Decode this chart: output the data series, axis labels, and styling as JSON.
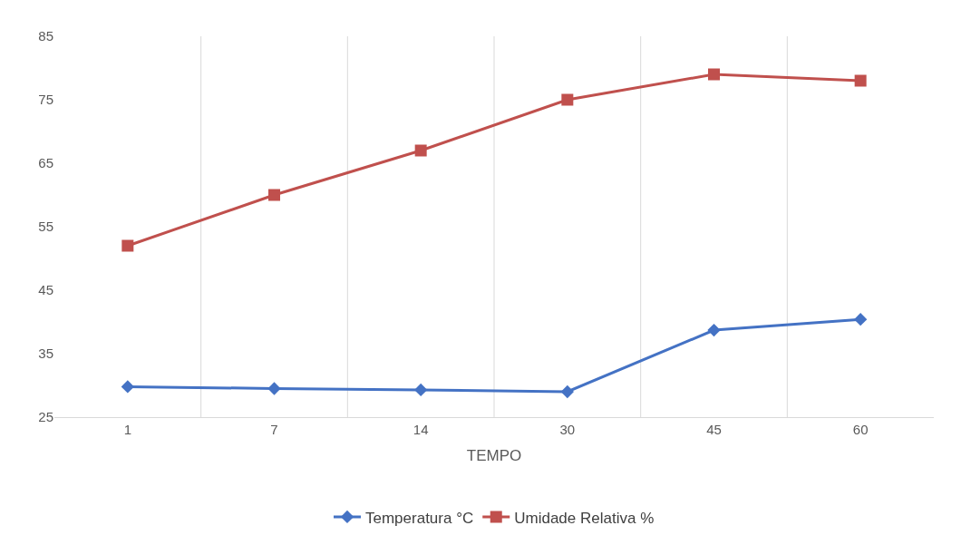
{
  "chart_data": {
    "type": "line",
    "xlabel": "TEMPO",
    "categories": [
      "1",
      "7",
      "14",
      "30",
      "45",
      "60"
    ],
    "series": [
      {
        "name": "Temperatura °C",
        "color": "#4472c4",
        "marker": "diamond",
        "values": [
          29.8,
          29.5,
          29.3,
          29.0,
          38.7,
          40.4
        ]
      },
      {
        "name": "Umidade Relativa %",
        "color": "#c0504d",
        "marker": "square",
        "values": [
          52,
          60,
          67,
          75,
          79,
          78
        ]
      }
    ],
    "ylim": [
      25,
      85
    ],
    "yticks": [
      25,
      35,
      45,
      55,
      65,
      75,
      85
    ],
    "grid": "x",
    "legend": "bottom",
    "line_style": "solid"
  }
}
